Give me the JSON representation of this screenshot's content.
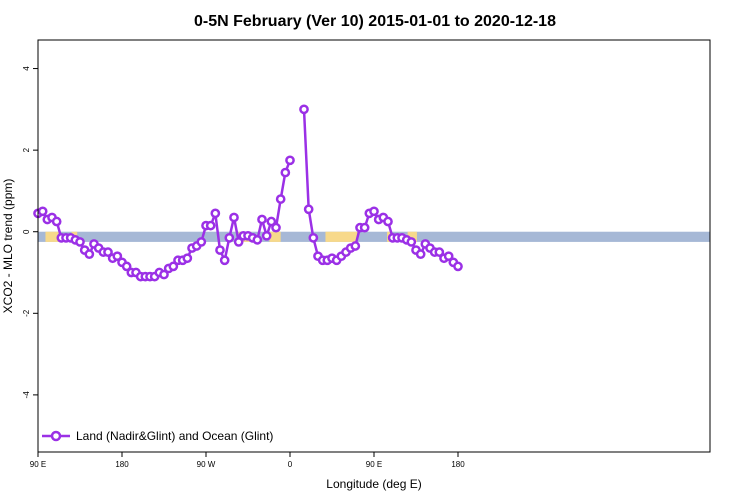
{
  "chart_data": {
    "type": "line",
    "title": "0-5N February (Ver 10)   2015-01-01 to 2020-12-18",
    "xlabel": "Longitude (deg E)",
    "ylabel": "XCO2 - MLO trend (ppm)",
    "x_domain_deg": [
      90,
      450
    ],
    "xlim": [
      90,
      450
    ],
    "ylim": [
      -5.4,
      4.7
    ],
    "x_ticks": [
      {
        "x": 90,
        "label": "90 E"
      },
      {
        "x": 180,
        "label": "180"
      },
      {
        "x": 270,
        "label": "90 W"
      },
      {
        "x": 360,
        "label": "0"
      },
      {
        "x": 450,
        "label": "90 E"
      },
      {
        "x": 540,
        "label": "180"
      }
    ],
    "y_ticks": [
      {
        "y": 4,
        "label": "4"
      },
      {
        "y": 2,
        "label": "2"
      },
      {
        "y": 0,
        "label": "0"
      },
      {
        "y": -2,
        "label": "-2"
      },
      {
        "y": -4,
        "label": "-4"
      }
    ],
    "surface_band": {
      "y_range": [
        -0.25,
        0.0
      ],
      "ocean_color": "#a6b8d6",
      "land_color": "#f7d98b",
      "land_spans": [
        [
          98,
          112
        ],
        [
          126,
          132
        ],
        [
          305,
          318
        ],
        [
          338,
          350
        ],
        [
          398,
          432
        ],
        [
          464,
          468
        ],
        [
          486,
          496
        ]
      ]
    },
    "series": [
      {
        "name": "Land (Nadir&Glint) and Ocean (Glint)",
        "color": "#9b30e6",
        "x": [
          90,
          95,
          100,
          105,
          110,
          115,
          120,
          125,
          130,
          135,
          140,
          145,
          150,
          155,
          160,
          165,
          170,
          175,
          180,
          185,
          190,
          195,
          200,
          205,
          210,
          215,
          220,
          225,
          230,
          235,
          240,
          245,
          250,
          255,
          260,
          265,
          270,
          275,
          280,
          285,
          290,
          295,
          300,
          305,
          310,
          315,
          320,
          325,
          330,
          335,
          340,
          345,
          350,
          355,
          360,
          365,
          370,
          375,
          380,
          385,
          390,
          395,
          400,
          405,
          410,
          415,
          420,
          425,
          430,
          435,
          440,
          445,
          450,
          455,
          460,
          465,
          470,
          475,
          480,
          485,
          490,
          495,
          500,
          505,
          510,
          515,
          520,
          525,
          530,
          535,
          540
        ],
        "y": [
          0.45,
          0.5,
          0.3,
          0.35,
          0.25,
          -0.15,
          -0.15,
          -0.15,
          -0.2,
          -0.25,
          -0.45,
          -0.55,
          -0.3,
          -0.4,
          -0.5,
          -0.5,
          -0.65,
          -0.6,
          -0.75,
          -0.85,
          -1.0,
          -1.0,
          -1.1,
          -1.1,
          -1.1,
          -1.1,
          -1.0,
          -1.05,
          -0.9,
          -0.85,
          -0.7,
          -0.7,
          -0.65,
          -0.4,
          -0.35,
          -0.25,
          0.15,
          0.15,
          0.45,
          -0.45,
          -0.7,
          -0.15,
          0.35,
          -0.25,
          -0.1,
          -0.1,
          -0.15,
          -0.2,
          0.3,
          -0.1,
          0.25,
          0.1,
          0.8,
          1.45,
          1.75,
          null,
          null,
          3.0,
          0.55,
          -0.15,
          -0.6,
          -0.7,
          -0.7,
          -0.65,
          -0.7,
          -0.6,
          -0.5,
          -0.4,
          -0.35,
          0.1,
          0.1,
          0.45,
          0.5,
          0.3,
          0.35,
          0.25,
          -0.15,
          -0.15,
          -0.15,
          -0.2,
          -0.25,
          -0.45,
          -0.55,
          -0.3,
          -0.4,
          -0.5,
          -0.5,
          -0.65,
          -0.6,
          -0.75,
          -0.85
        ]
      }
    ],
    "legend": {
      "position": "bottom-left",
      "label": "Land (Nadir&Glint) and Ocean (Glint)"
    },
    "grid": false
  }
}
